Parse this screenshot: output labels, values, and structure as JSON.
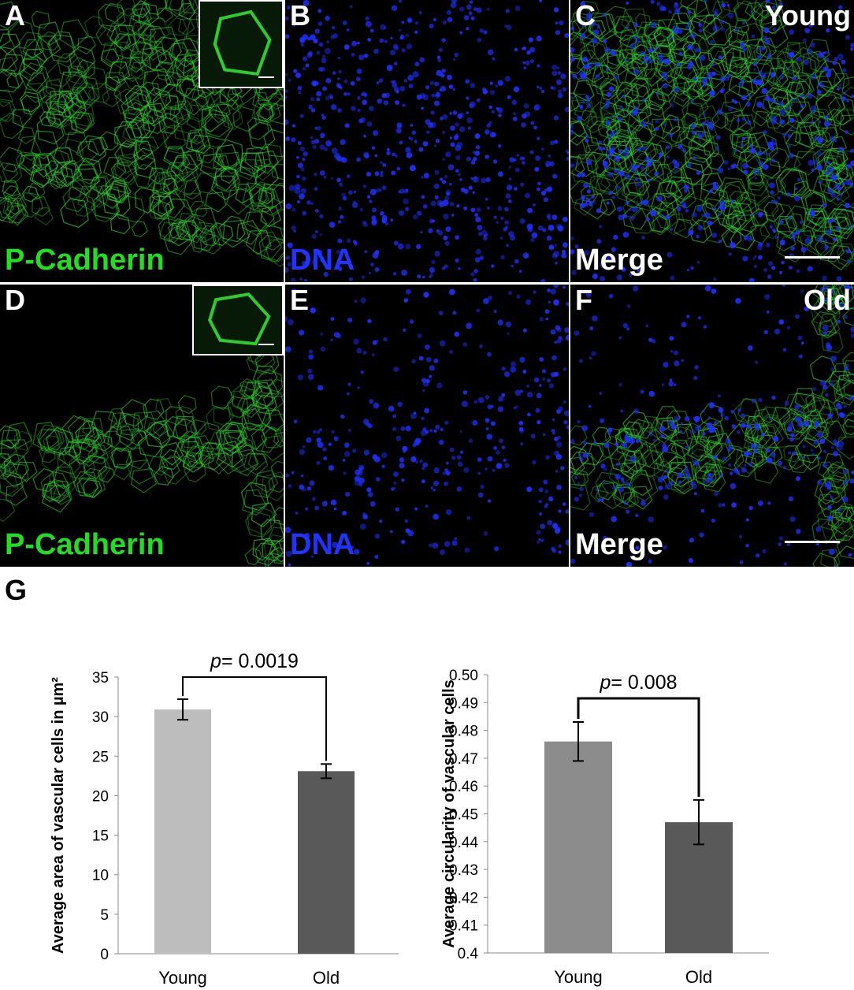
{
  "panels": [
    {
      "letter": "A",
      "label": "P-Cadherin",
      "label_color": "#22dd22",
      "kind": "green",
      "tag": "",
      "inset": true,
      "scalebar": false
    },
    {
      "letter": "B",
      "label": "DNA",
      "label_color": "#2233ff",
      "kind": "blue",
      "tag": "",
      "inset": false,
      "scalebar": false
    },
    {
      "letter": "C",
      "label": "Merge",
      "label_color": "#ffffff",
      "kind": "merge",
      "tag": "Young",
      "inset": false,
      "scalebar": true
    },
    {
      "letter": "D",
      "label": "P-Cadherin",
      "label_color": "#22dd22",
      "kind": "green",
      "tag": "",
      "inset": true,
      "scalebar": false
    },
    {
      "letter": "E",
      "label": "DNA",
      "label_color": "#2233ff",
      "kind": "blue",
      "tag": "",
      "inset": false,
      "scalebar": false
    },
    {
      "letter": "F",
      "label": "Merge",
      "label_color": "#ffffff",
      "kind": "merge",
      "tag": "Old",
      "inset": false,
      "scalebar": true
    }
  ],
  "figure_letter": "G",
  "colors": {
    "green": "#2ecc2e",
    "blue": "#2030ff",
    "bar_light": "#bdbdbd",
    "bar_dark": "#595959"
  },
  "chart_data": [
    {
      "type": "bar",
      "categories": [
        "Young",
        "Old"
      ],
      "values": [
        30.9,
        23.1
      ],
      "errors": [
        1.3,
        0.9
      ],
      "ylabel": "Average area of vascular cells in µm²",
      "ylim": [
        0,
        35
      ],
      "ticks": [
        "0",
        "5",
        "10",
        "15",
        "20",
        "25",
        "30",
        "35"
      ],
      "tick_values": [
        0,
        5,
        10,
        15,
        20,
        25,
        30,
        35
      ],
      "annotation": {
        "prefix": "p",
        "text": "= 0.0019"
      },
      "bar_colors": [
        "#bdbdbd",
        "#595959"
      ]
    },
    {
      "type": "bar",
      "categories": [
        "Young",
        "Old"
      ],
      "values": [
        0.476,
        0.447
      ],
      "errors": [
        0.007,
        0.008
      ],
      "ylabel": "Average circularity of vascular cells",
      "ylim": [
        0.4,
        0.5
      ],
      "ticks": [
        "0.4",
        "0.41",
        "0.42",
        "0.43",
        "0.44",
        "0.45",
        "0.46",
        "0.47",
        "0.48",
        "0.49",
        "0.50"
      ],
      "tick_values": [
        0.4,
        0.41,
        0.42,
        0.43,
        0.44,
        0.45,
        0.46,
        0.47,
        0.48,
        0.49,
        0.5
      ],
      "annotation": {
        "prefix": "p",
        "text": "= 0.008"
      },
      "bar_colors": [
        "#8c8c8c",
        "#595959"
      ]
    }
  ]
}
